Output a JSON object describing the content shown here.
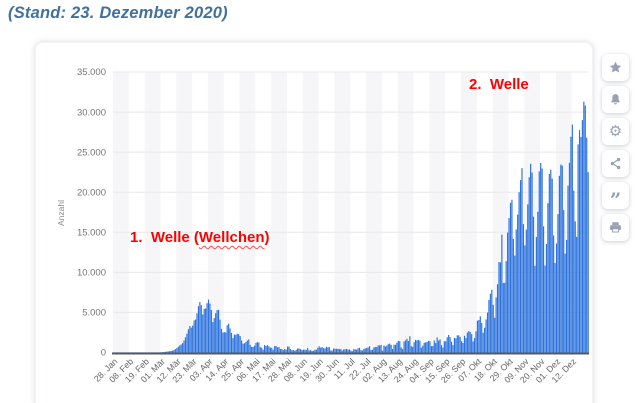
{
  "page": {
    "title": "(Stand: 23. Dezember 2020)",
    "title_color": "#41719C"
  },
  "toolbar": {
    "buttons": [
      {
        "name": "favorite",
        "icon": "star-icon"
      },
      {
        "name": "notifications",
        "icon": "bell-icon"
      },
      {
        "name": "settings",
        "icon": "gear-icon",
        "glyph": "⚙"
      },
      {
        "name": "share",
        "icon": "share-icon"
      },
      {
        "name": "citation",
        "icon": "quote-icon",
        "glyph": "”"
      },
      {
        "name": "print",
        "icon": "printer-icon"
      }
    ]
  },
  "annotations": {
    "color": "#ff0000",
    "first_wave": {
      "prefix": "1.  Welle (",
      "wavy": "Wellchen",
      "suffix": ")"
    },
    "second_wave": {
      "text": "2.  Welle"
    }
  },
  "chart_data": {
    "type": "bar",
    "title": "",
    "xlabel": "",
    "ylabel": "Anzahl",
    "ylim": [
      0,
      35000
    ],
    "y_tick_step": 5000,
    "y_tick_labels": [
      "0",
      "5.000",
      "10.000",
      "15.000",
      "20.000",
      "25.000",
      "30.000",
      "35.000"
    ],
    "x_tick_labels": [
      "28. Jan",
      "08. Feb",
      "19. Feb",
      "01. Mär",
      "12. Mär",
      "23. Mär",
      "03. Apr",
      "14. Apr",
      "25. Apr",
      "06. Mai",
      "17. Mai",
      "28. Mai",
      "08. Jun",
      "19. Jun",
      "30. Jun",
      "11. Jul",
      "22. Jul",
      "02. Aug",
      "13. Aug",
      "24. Aug",
      "04. Sep",
      "15. Sep",
      "26. Sep",
      "07. Okt",
      "18. Okt",
      "29. Okt",
      "09. Nov",
      "20. Nov",
      "01. Dez",
      "12. Dez"
    ],
    "x_tick_interval_days": 11,
    "grid": "horizontal",
    "legend": "none",
    "bar_color": "#2d73dd",
    "stripe_color": "#f6f6f8",
    "axis_line_color": "#55585e",
    "values": [
      1,
      2,
      3,
      2,
      3,
      2,
      2,
      1,
      2,
      2,
      1,
      1,
      2,
      1,
      1,
      2,
      1,
      1,
      1,
      0,
      1,
      1,
      0,
      1,
      1,
      1,
      2,
      2,
      3,
      5,
      10,
      15,
      20,
      30,
      45,
      60,
      80,
      110,
      140,
      160,
      190,
      240,
      300,
      420,
      550,
      720,
      880,
      1000,
      1170,
      1500,
      1900,
      2350,
      2900,
      3300,
      3100,
      3350,
      4000,
      4120,
      4900,
      5780,
      6290,
      5900,
      4750,
      5450,
      5500,
      6150,
      6600,
      6100,
      5300,
      3800,
      4300,
      4900,
      5300,
      5320,
      4100,
      2950,
      2500,
      2540,
      2500,
      3400,
      3600,
      3000,
      2450,
      1800,
      2240,
      2200,
      2350,
      2300,
      2050,
      1500,
      1100,
      1150,
      1300,
      1500,
      1640,
      950,
      700,
      680,
      850,
      1200,
      1290,
      1260,
      670,
      600,
      360,
      930,
      800,
      910,
      770,
      620,
      580,
      340,
      800,
      800,
      640,
      680,
      430,
      430,
      290,
      430,
      350,
      740,
      740,
      420,
      290,
      330,
      210,
      340,
      510,
      500,
      410,
      300,
      350,
      350,
      320,
      560,
      260,
      300,
      190,
      210,
      340,
      350,
      580,
      770,
      600,
      690,
      540,
      500,
      710,
      630,
      680,
      260,
      250,
      500,
      470,
      470,
      450,
      440,
      420,
      240,
      390,
      400,
      440,
      360,
      380,
      250,
      160,
      410,
      410,
      350,
      530,
      580,
      300,
      250,
      450,
      520,
      570,
      630,
      780,
      310,
      340,
      630,
      680,
      680,
      900,
      870,
      960,
      240,
      880,
      740,
      870,
      1040,
      1120,
      950,
      430,
      970,
      970,
      1230,
      1450,
      1410,
      630,
      420,
      1390,
      1510,
      1710,
      1430,
      2030,
      780,
      710,
      1280,
      1580,
      1510,
      1570,
      1470,
      610,
      850,
      1220,
      1260,
      1310,
      1450,
      1400,
      790,
      810,
      1500,
      1180,
      1890,
      1480,
      1630,
      920,
      620,
      1410,
      1400,
      1900,
      2190,
      1920,
      1350,
      920,
      1820,
      1770,
      2140,
      2150,
      1950,
      1410,
      1190,
      2090,
      1800,
      2500,
      2670,
      2560,
      2280,
      1380,
      1790,
      2640,
      3970,
      4060,
      4520,
      3680,
      2470,
      3090,
      4130,
      4980,
      6560,
      7330,
      7830,
      5950,
      4330,
      6870,
      8520,
      11290,
      11240,
      14710,
      8680,
      8690,
      11400,
      14960,
      16770,
      18680,
      19060,
      14180,
      12100,
      15350,
      17210,
      19990,
      21510,
      23000,
      16020,
      13360,
      15330,
      18490,
      21870,
      23540,
      22460,
      16950,
      10820,
      14420,
      17560,
      22600,
      23650,
      22960,
      15740,
      10860,
      13550,
      18630,
      22270,
      22810,
      21690,
      14610,
      11170,
      13600,
      17270,
      22050,
      23450,
      23320,
      17770,
      12330,
      14050,
      20820,
      23680,
      26920,
      28440,
      20200,
      16360,
      14430,
      25970,
      27730,
      26900,
      29000,
      31300,
      30800,
      26800,
      22500
    ]
  }
}
